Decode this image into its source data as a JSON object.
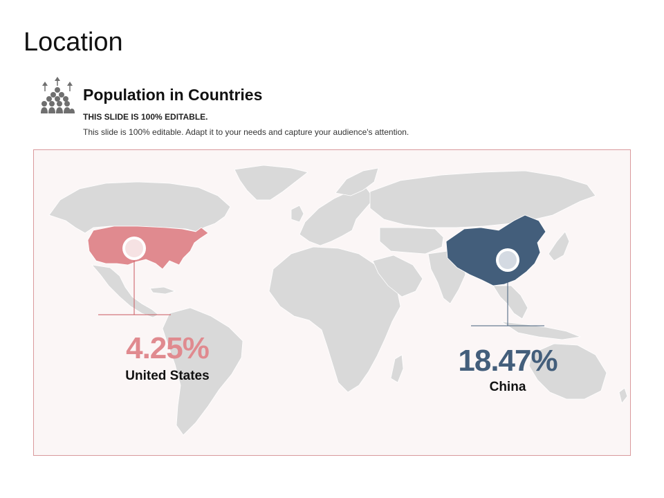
{
  "slide": {
    "title": "Location"
  },
  "header": {
    "icon": "people-growth-icon",
    "heading": "Population in Countries",
    "subheading": "THIS SLIDE IS 100% EDITABLE.",
    "description": "This slide is 100% editable. Adapt it to your needs and capture your audience's attention."
  },
  "map": {
    "base_color": "#d9d9d9",
    "background_color": "#fbf6f6",
    "border_color": "#d9999c",
    "markers": [
      {
        "country": "United States",
        "value": "4.25%",
        "color": "#e08a8f"
      },
      {
        "country": "China",
        "value": "18.47%",
        "color": "#435e7b"
      }
    ]
  }
}
